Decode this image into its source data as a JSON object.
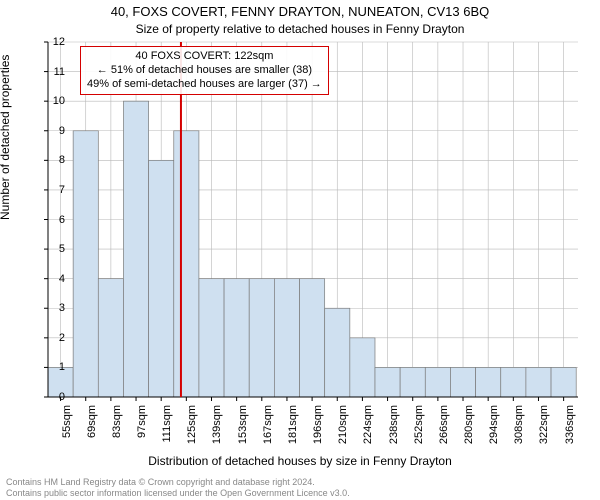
{
  "titles": {
    "line1": "40, FOXS COVERT, FENNY DRAYTON, NUNEATON, CV13 6BQ",
    "line2": "Size of property relative to detached houses in Fenny Drayton"
  },
  "axes": {
    "ylabel": "Number of detached properties",
    "xlabel": "Distribution of detached houses by size in Fenny Drayton",
    "ylim": [
      0,
      12
    ],
    "yticks": [
      0,
      1,
      2,
      3,
      4,
      5,
      6,
      7,
      8,
      9,
      10,
      11,
      12
    ],
    "xticks_labels": [
      "55sqm",
      "69sqm",
      "83sqm",
      "97sqm",
      "111sqm",
      "125sqm",
      "139sqm",
      "153sqm",
      "167sqm",
      "181sqm",
      "196sqm",
      "210sqm",
      "224sqm",
      "238sqm",
      "252sqm",
      "266sqm",
      "280sqm",
      "294sqm",
      "308sqm",
      "322sqm",
      "336sqm"
    ],
    "xtick_start": 55,
    "xtick_step": 14,
    "x_data_min": 48,
    "x_data_max": 343,
    "grid_color": "#b8b8b8",
    "axis_color": "#000000"
  },
  "bars": {
    "bin_width": 14,
    "fill_color": "#cfe0f0",
    "edge_color": "#7a7a7a",
    "values": [
      {
        "x0": 48,
        "count": 1
      },
      {
        "x0": 62,
        "count": 9
      },
      {
        "x0": 76,
        "count": 4
      },
      {
        "x0": 90,
        "count": 10
      },
      {
        "x0": 104,
        "count": 8
      },
      {
        "x0": 118,
        "count": 9
      },
      {
        "x0": 132,
        "count": 4
      },
      {
        "x0": 146,
        "count": 4
      },
      {
        "x0": 160,
        "count": 4
      },
      {
        "x0": 174,
        "count": 4
      },
      {
        "x0": 188,
        "count": 4
      },
      {
        "x0": 202,
        "count": 3
      },
      {
        "x0": 216,
        "count": 2
      },
      {
        "x0": 230,
        "count": 1
      },
      {
        "x0": 244,
        "count": 1
      },
      {
        "x0": 258,
        "count": 1
      },
      {
        "x0": 272,
        "count": 1
      },
      {
        "x0": 286,
        "count": 1
      },
      {
        "x0": 300,
        "count": 1
      },
      {
        "x0": 314,
        "count": 1
      },
      {
        "x0": 328,
        "count": 1
      }
    ]
  },
  "marker": {
    "x": 122,
    "color": "#d40000",
    "width": 2
  },
  "annotation": {
    "line1": "40 FOXS COVERT: 122sqm",
    "line2": "← 51% of detached houses are smaller (38)",
    "line3": "49% of semi-detached houses are larger (37) →",
    "border_color": "#d40000"
  },
  "footer": {
    "line1": "Contains HM Land Registry data © Crown copyright and database right 2024.",
    "line2": "Contains public sector information licensed under the Open Government Licence v3.0."
  },
  "style": {
    "background_color": "#ffffff",
    "font_family": "Arial",
    "title_fontsize": 13,
    "subtitle_fontsize": 12,
    "tick_fontsize": 11,
    "annotation_fontsize": 11,
    "footer_fontsize": 9,
    "footer_color": "#888888"
  }
}
